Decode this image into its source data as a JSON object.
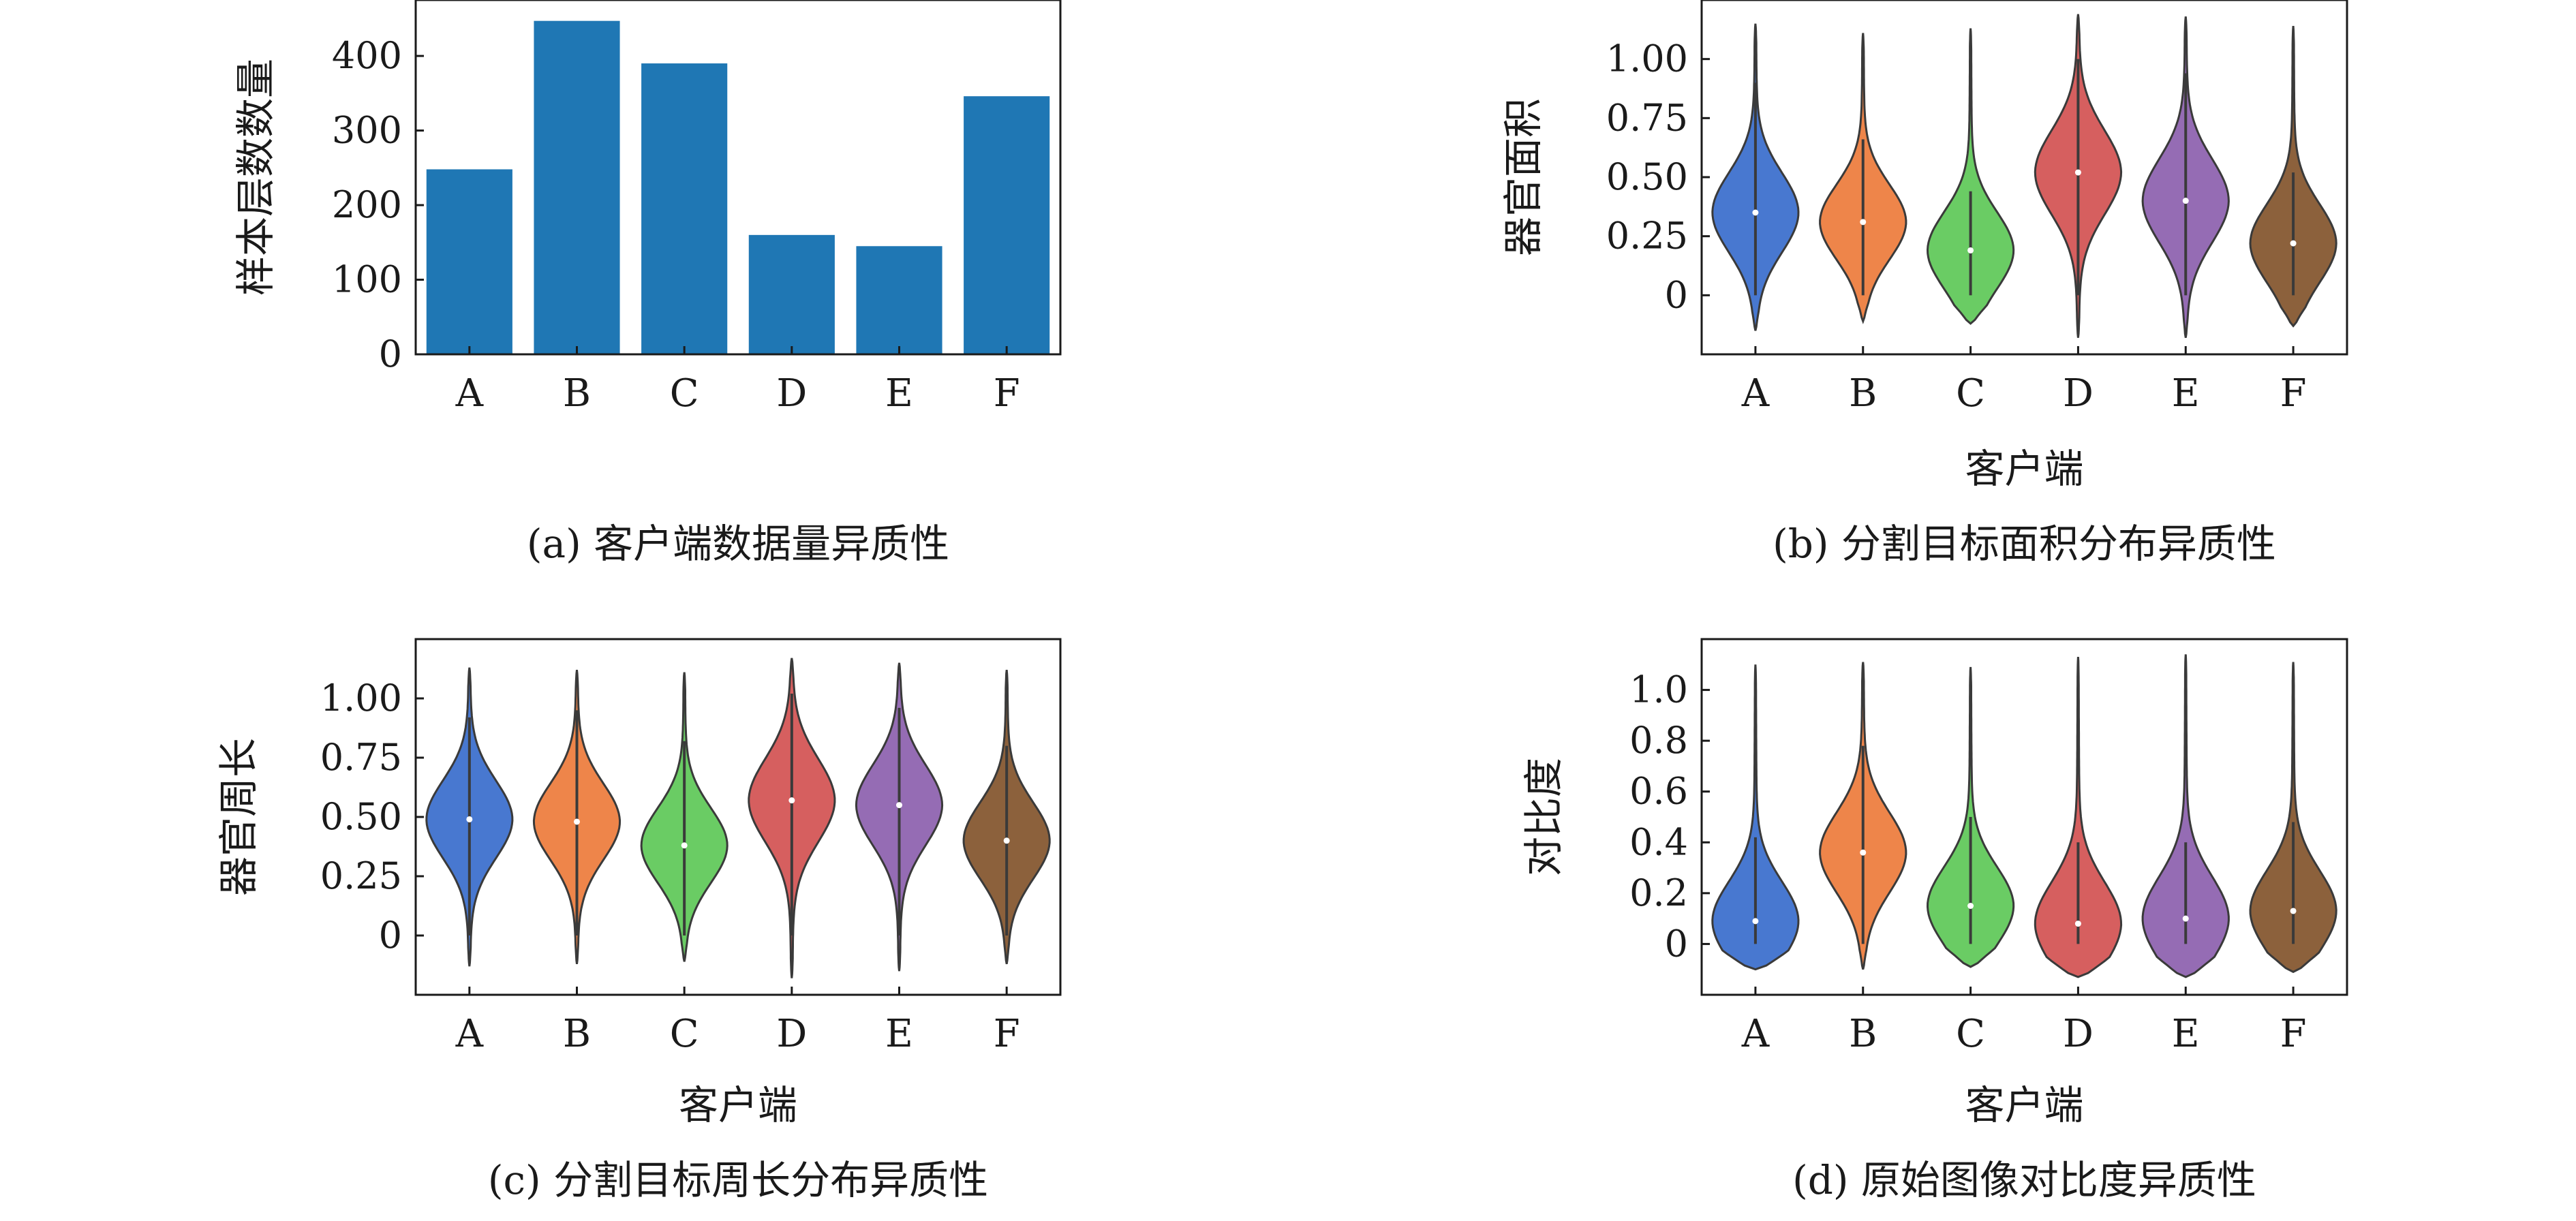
{
  "chart_data": [
    {
      "type": "bar",
      "caption": "(a) 客户端数据量异质性",
      "xlabel": "",
      "ylabel": "样本层数数量",
      "categories": [
        "A",
        "B",
        "C",
        "D",
        "E",
        "F"
      ],
      "values": [
        248,
        447,
        390,
        160,
        145,
        346
      ],
      "ylim": [
        0,
        475
      ],
      "yticks": [
        0,
        100,
        200,
        300,
        400
      ],
      "ytick_labels": [
        "0",
        "100",
        "200",
        "300",
        "400"
      ],
      "color": "#1f77b4",
      "grid": false
    },
    {
      "type": "violin",
      "caption": "(b) 分割目标面积分布异质性",
      "xlabel": "客户端",
      "ylabel": "器官面积",
      "categories": [
        "A",
        "B",
        "C",
        "D",
        "E",
        "F"
      ],
      "colors": [
        "#4878d0",
        "#ee854a",
        "#6acc64",
        "#d65f5f",
        "#956cb4",
        "#8c613c"
      ],
      "medians": [
        0.35,
        0.31,
        0.19,
        0.52,
        0.4,
        0.22
      ],
      "ranges": [
        [
          -0.15,
          1.15
        ],
        [
          -0.11,
          1.11
        ],
        [
          -0.12,
          1.13
        ],
        [
          -0.18,
          1.19
        ],
        [
          -0.18,
          1.18
        ],
        [
          -0.13,
          1.14
        ]
      ],
      "whiskers": [
        [
          0.0,
          0.9
        ],
        [
          0.0,
          0.66
        ],
        [
          0.0,
          0.44
        ],
        [
          0.0,
          1.0
        ],
        [
          0.0,
          0.94
        ],
        [
          0.0,
          0.52
        ]
      ],
      "ylim": [
        -0.25,
        1.25
      ],
      "yticks": [
        0,
        0.25,
        0.5,
        0.75,
        1.0
      ],
      "ytick_labels": [
        "0",
        "0.25",
        "0.50",
        "0.75",
        "1.00"
      ],
      "grid": false
    },
    {
      "type": "violin",
      "caption": "(c) 分割目标周长分布异质性",
      "xlabel": "客户端",
      "ylabel": "器官周长",
      "categories": [
        "A",
        "B",
        "C",
        "D",
        "E",
        "F"
      ],
      "colors": [
        "#4878d0",
        "#ee854a",
        "#6acc64",
        "#d65f5f",
        "#956cb4",
        "#8c613c"
      ],
      "medians": [
        0.49,
        0.48,
        0.38,
        0.57,
        0.55,
        0.4
      ],
      "ranges": [
        [
          -0.13,
          1.13
        ],
        [
          -0.12,
          1.12
        ],
        [
          -0.11,
          1.11
        ],
        [
          -0.18,
          1.17
        ],
        [
          -0.15,
          1.15
        ],
        [
          -0.12,
          1.12
        ]
      ],
      "whiskers": [
        [
          0.0,
          0.92
        ],
        [
          0.0,
          0.95
        ],
        [
          0.0,
          0.82
        ],
        [
          0.0,
          1.02
        ],
        [
          0.0,
          0.96
        ],
        [
          0.0,
          0.8
        ]
      ],
      "ylim": [
        -0.25,
        1.25
      ],
      "yticks": [
        0,
        0.25,
        0.5,
        0.75,
        1.0
      ],
      "ytick_labels": [
        "0",
        "0.25",
        "0.50",
        "0.75",
        "1.00"
      ],
      "grid": false
    },
    {
      "type": "violin",
      "caption": "(d) 原始图像对比度异质性",
      "xlabel": "客户端",
      "ylabel": "对比度",
      "categories": [
        "A",
        "B",
        "C",
        "D",
        "E",
        "F"
      ],
      "colors": [
        "#4878d0",
        "#ee854a",
        "#6acc64",
        "#d65f5f",
        "#956cb4",
        "#8c613c"
      ],
      "medians": [
        0.09,
        0.36,
        0.15,
        0.08,
        0.1,
        0.13
      ],
      "ranges": [
        [
          -0.1,
          1.1
        ],
        [
          -0.1,
          1.11
        ],
        [
          -0.09,
          1.09
        ],
        [
          -0.13,
          1.13
        ],
        [
          -0.13,
          1.14
        ],
        [
          -0.11,
          1.11
        ]
      ],
      "whiskers": [
        [
          0.0,
          0.42
        ],
        [
          0.0,
          0.78
        ],
        [
          0.0,
          0.5
        ],
        [
          0.0,
          0.4
        ],
        [
          0.0,
          0.4
        ],
        [
          0.0,
          0.48
        ]
      ],
      "ylim": [
        -0.2,
        1.2
      ],
      "yticks": [
        0,
        0.2,
        0.4,
        0.6,
        0.8,
        1.0
      ],
      "ytick_labels": [
        "0",
        "0.2",
        "0.4",
        "0.6",
        "0.8",
        "1.0"
      ],
      "grid": false
    }
  ]
}
